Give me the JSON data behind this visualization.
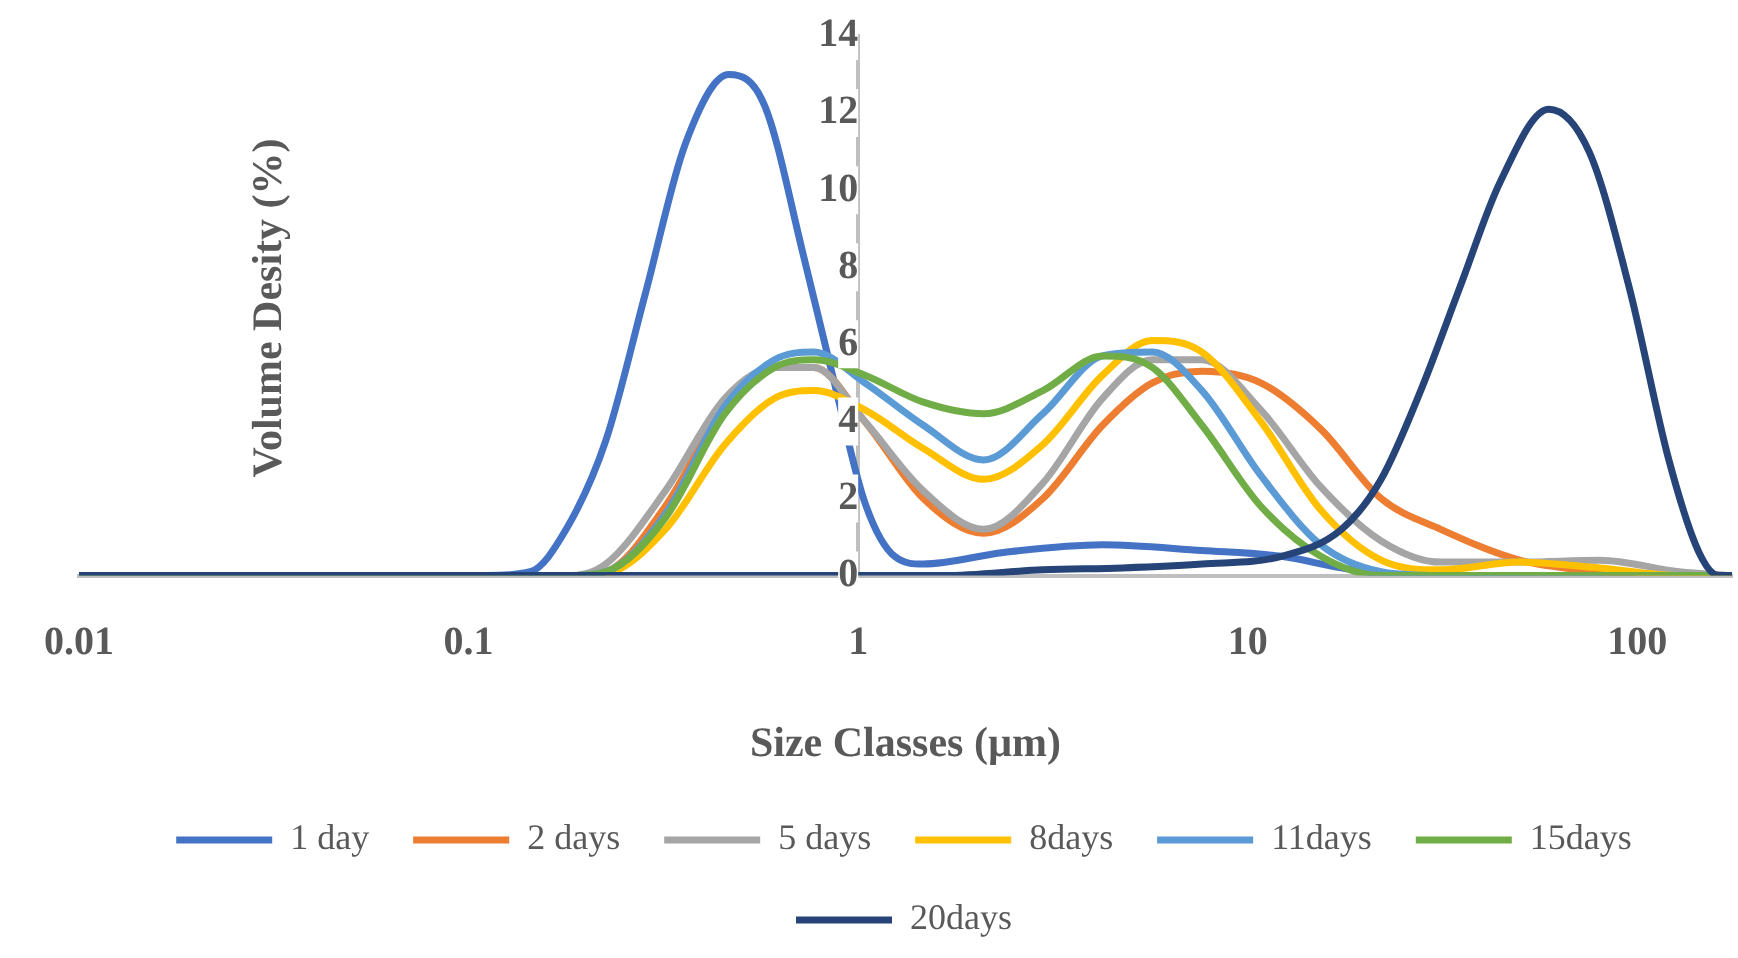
{
  "chart_data": {
    "type": "line",
    "xlabel": "Size Classes (µm)",
    "ylabel": "Volume Desity (%)",
    "log": "x",
    "xlim": [
      0.01,
      175
    ],
    "xticks": [
      0.01,
      0.1,
      1,
      10,
      100
    ],
    "ylim": [
      0,
      14
    ],
    "yticks": [
      0,
      2,
      4,
      6,
      8,
      10,
      12,
      14
    ],
    "grid": false,
    "legend": "bottom",
    "marker": "none",
    "line_style": "solid",
    "x": [
      0.01,
      0.178,
      0.225,
      0.32,
      0.455,
      0.61,
      0.77,
      1.04,
      1.47,
      2.1,
      2.98,
      4.24,
      5.69,
      7.63,
      10.8,
      15.4,
      22.0,
      31.3,
      49.9,
      80.1,
      128,
      175
    ],
    "series": [
      {
        "name": "1 day",
        "color": "#4472c4",
        "x": [
          0.01,
          0.111,
          0.144,
          0.178,
          0.225,
          0.284,
          0.36,
          0.466,
          0.575,
          0.728,
          0.869,
          1.04,
          1.24,
          1.47,
          2.36,
          4.24,
          7.63,
          12.2,
          17.4,
          24.7,
          175
        ],
        "values": [
          0,
          0,
          0.1,
          1.2,
          3.5,
          7.3,
          11.2,
          13.0,
          12.2,
          8.2,
          5.0,
          1.9,
          0.5,
          0.3,
          0.6,
          0.8,
          0.65,
          0.5,
          0.2,
          0,
          0
        ]
      },
      {
        "name": "2 days",
        "color": "#ed7d31",
        "values": [
          0,
          0,
          0.1,
          1.8,
          4.4,
          5.4,
          5.4,
          4.0,
          2.0,
          1.1,
          2.0,
          3.9,
          5.0,
          5.3,
          5.0,
          3.8,
          2.0,
          1.2,
          0.4,
          0.1,
          0,
          0
        ]
      },
      {
        "name": "5 days",
        "color": "#a5a5a5",
        "values": [
          0,
          0,
          0.3,
          2.2,
          4.6,
          5.4,
          5.4,
          4.0,
          2.2,
          1.2,
          2.4,
          4.6,
          5.6,
          5.6,
          4.3,
          2.3,
          0.9,
          0.35,
          0.35,
          0.4,
          0.1,
          0
        ]
      },
      {
        "name": "8days",
        "color": "#ffc000",
        "values": [
          0,
          0,
          0.05,
          1.2,
          3.4,
          4.6,
          4.8,
          4.3,
          3.3,
          2.5,
          3.4,
          5.2,
          6.1,
          5.8,
          4.0,
          1.7,
          0.4,
          0.15,
          0.35,
          0.2,
          0,
          0
        ]
      },
      {
        "name": "11days",
        "color": "#5b9bd5",
        "values": [
          0,
          0,
          0.1,
          1.6,
          4.4,
          5.6,
          5.8,
          5.0,
          3.9,
          3.0,
          4.2,
          5.7,
          5.8,
          4.8,
          2.6,
          0.8,
          0.1,
          0,
          0,
          null,
          null,
          null
        ]
      },
      {
        "name": "15days",
        "color": "#70ad47",
        "values": [
          0,
          0,
          0.1,
          1.5,
          4.2,
          5.4,
          5.6,
          5.2,
          4.5,
          4.2,
          4.8,
          5.7,
          5.4,
          3.9,
          1.8,
          0.5,
          0,
          0,
          0,
          0,
          0,
          0
        ]
      },
      {
        "name": "20days",
        "color": "#264478",
        "x": [
          0.01,
          1.66,
          2.98,
          4.77,
          7.63,
          12.2,
          17.4,
          22.0,
          27.8,
          35.1,
          44.4,
          59.3,
          75.2,
          95.2,
          120.5,
          144,
          162,
          175
        ],
        "values": [
          0,
          0,
          0.15,
          0.2,
          0.3,
          0.5,
          1.2,
          2.5,
          4.8,
          7.5,
          10.2,
          12.1,
          11.0,
          7.5,
          3.0,
          0.6,
          0,
          0
        ]
      }
    ]
  }
}
